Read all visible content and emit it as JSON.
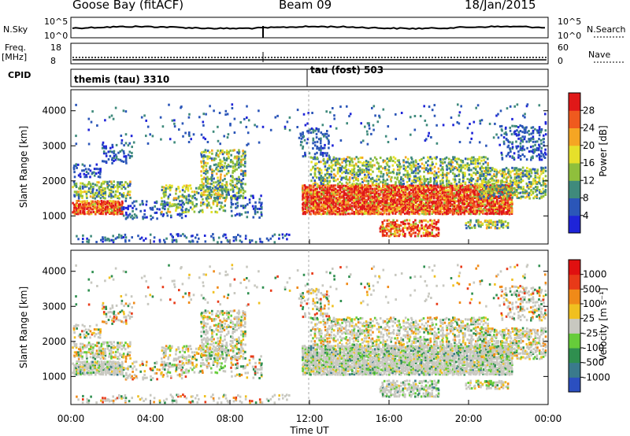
{
  "header": {
    "station": "Goose Bay (fitACF)",
    "beam": "Beam 09",
    "date": "18/Jan/2015"
  },
  "top_panels": {
    "nsky_label": "N.Sky",
    "nsky_ticks": [
      "10^5",
      "10^0"
    ],
    "nsearch_label": "N.Search",
    "nsearch_ticks": [
      "10^5",
      "10^0"
    ],
    "freq_label": "Freq.",
    "freq_unit": "[MHz]",
    "freq_ticks": [
      "18",
      "8"
    ],
    "nave_label": "Nave",
    "nave_ticks": [
      "60",
      "0"
    ],
    "cpid_label": "CPID",
    "cpid_segments": [
      "themis (tau) 3310",
      "tau (fost) 503"
    ]
  },
  "chart_data": [
    {
      "type": "heatmap",
      "name": "power",
      "ylabel": "Slant Range [km]",
      "xlabel": "Time UT",
      "x_ticks": [
        "00:00",
        "04:00",
        "08:00",
        "12:00",
        "16:00",
        "20:00",
        "00:00"
      ],
      "y_ticks": [
        1000,
        2000,
        3000,
        4000
      ],
      "ylim": [
        200,
        4600
      ],
      "colorbar": {
        "label": "Power [dB]",
        "ticks": [
          4,
          8,
          12,
          16,
          20,
          24,
          28
        ],
        "colors": [
          "#1e24d8",
          "#2b56b8",
          "#3f8a7c",
          "#8fbf3c",
          "#e6e02a",
          "#f5a523",
          "#ef5a1e",
          "#e01818"
        ]
      }
    },
    {
      "type": "heatmap",
      "name": "velocity",
      "ylabel": "Slant Range [km]",
      "xlabel": "Time UT",
      "x_ticks": [
        "00:00",
        "04:00",
        "08:00",
        "12:00",
        "16:00",
        "20:00",
        "00:00"
      ],
      "y_ticks": [
        1000,
        2000,
        3000,
        4000
      ],
      "ylim": [
        200,
        4600
      ],
      "colorbar": {
        "label": "Velocity [m s⁻¹]",
        "ticks": [
          "1000",
          "500",
          "100",
          "25",
          "-25",
          "-100",
          "-500",
          "-1000"
        ],
        "colors": [
          "#2b4fc0",
          "#3a7a8c",
          "#2f8f4f",
          "#66cc3a",
          "#c8c8c0",
          "#f0c020",
          "#f08a18",
          "#e83a18",
          "#e01010"
        ]
      }
    }
  ]
}
